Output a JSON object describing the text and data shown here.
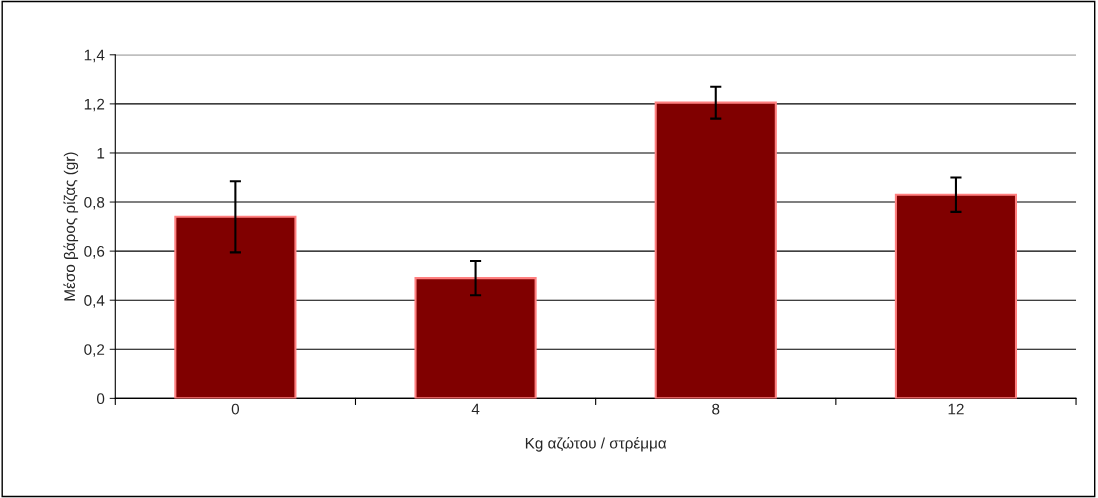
{
  "chart_data": {
    "type": "bar",
    "xlabel": "Kg αζώτου / στρέμμα",
    "ylabel": "Μέσο βάρος ρίζας (gr)",
    "categories": [
      "0",
      "4",
      "8",
      "12"
    ],
    "values": [
      0.74,
      0.49,
      1.205,
      0.83
    ],
    "errors": [
      0.145,
      0.07,
      0.065,
      0.07
    ],
    "color": "#800000",
    "ylim": [
      0,
      1.4
    ],
    "yticks": [
      0,
      {
        "value": 0.2,
        "label": "0,2"
      },
      {
        "value": 0.4,
        "label": "0,4"
      },
      {
        "value": 0.6,
        "label": "0,6"
      },
      {
        "value": 0.8,
        "label": "0,8"
      },
      1,
      {
        "value": 1.2,
        "label": "1,2"
      },
      {
        "value": 1.4,
        "label": "1,4"
      }
    ],
    "grid": "y",
    "legend": false
  }
}
